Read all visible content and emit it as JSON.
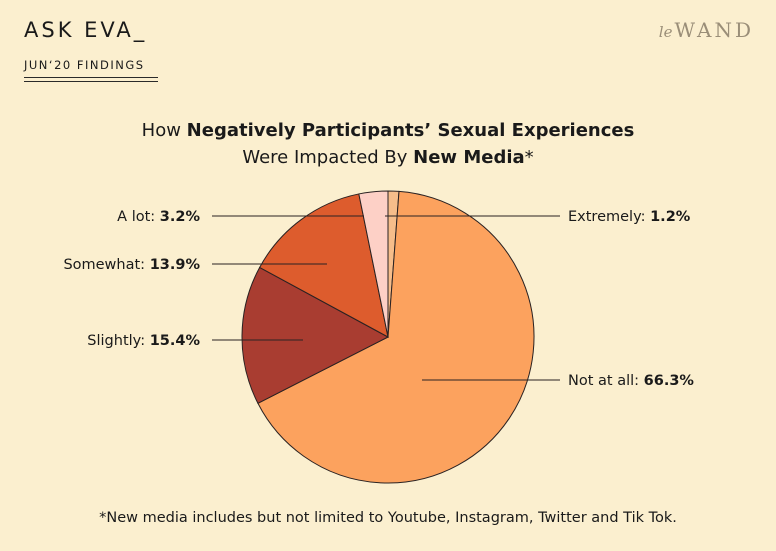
{
  "header": {
    "title": "ASK EVA_",
    "subtitle": "JUN‘20 FINDINGS",
    "logo_prefix": "le",
    "logo_main": "WAND"
  },
  "chart_data": {
    "type": "pie",
    "title_line1_plain": "How ",
    "title_line1_bold": "Negatively Participants’ Sexual Experiences",
    "title_line2_plain": "Were Impacted By ",
    "title_line2_bold": "New Media",
    "title_line2_suffix": "*",
    "slices": [
      {
        "label": "Extremely:",
        "value": 1.2,
        "value_text": "1.2%",
        "color": "#f6bd8a"
      },
      {
        "label": "Not at all:",
        "value": 66.3,
        "value_text": "66.3%",
        "color": "#fca25e"
      },
      {
        "label": "Slightly:",
        "value": 15.4,
        "value_text": "15.4%",
        "color": "#a93d31"
      },
      {
        "label": "Somewhat:",
        "value": 13.9,
        "value_text": "13.9%",
        "color": "#dd5c2d"
      },
      {
        "label": "A lot:",
        "value": 3.2,
        "value_text": "3.2%",
        "color": "#fdd0c6"
      }
    ],
    "start": "12 o'clock",
    "direction": "clockwise"
  },
  "footnote": "*New media includes but not limited to Youtube, Instagram, Twitter and Tik Tok."
}
